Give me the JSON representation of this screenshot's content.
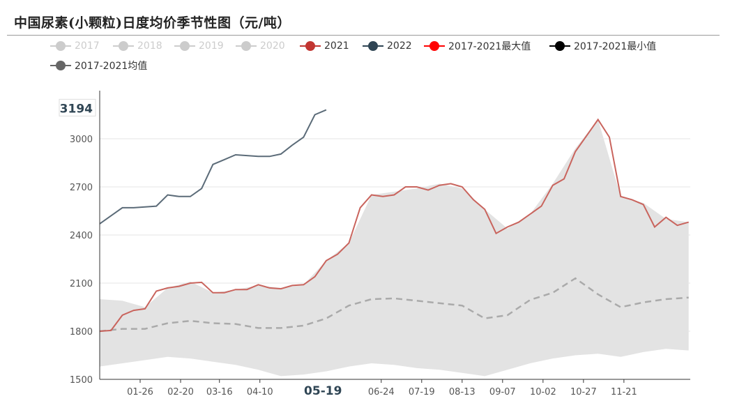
{
  "title": "中国尿素(小颗粒)日度均价季节性图（元/吨）",
  "legend": [
    {
      "label": "2017",
      "color": "#cccccc",
      "active": false
    },
    {
      "label": "2018",
      "color": "#cccccc",
      "active": false
    },
    {
      "label": "2019",
      "color": "#cccccc",
      "active": false
    },
    {
      "label": "2020",
      "color": "#cccccc",
      "active": false
    },
    {
      "label": "2021",
      "color": "#c23531",
      "active": true
    },
    {
      "label": "2022",
      "color": "#2f4554",
      "active": true
    },
    {
      "label": "2017-2021最大值",
      "color": "#ff0000",
      "active": true
    },
    {
      "label": "2017-2021最小值",
      "color": "#000000",
      "active": true
    },
    {
      "label": "2017-2021均值",
      "color": "#666666",
      "active": true
    }
  ],
  "chart_data": {
    "type": "line",
    "ylim": [
      1500,
      3300
    ],
    "yticks": [
      1500,
      1800,
      2100,
      2400,
      2700,
      3000
    ],
    "y_pointer_label": "3194",
    "x_ticks": [
      "01-26",
      "02-20",
      "03-16",
      "04-10",
      "05-19",
      "06-24",
      "07-19",
      "08-13",
      "09-07",
      "10-02",
      "10-27",
      "11-21"
    ],
    "x_pointer_label": "05-19",
    "grid": true,
    "series": [
      {
        "name": "2021",
        "color": "#c23531",
        "x": [
          "01-01",
          "01-08",
          "01-15",
          "01-22",
          "01-29",
          "02-05",
          "02-12",
          "02-19",
          "02-26",
          "03-05",
          "03-12",
          "03-19",
          "03-26",
          "04-02",
          "04-09",
          "04-16",
          "04-23",
          "04-30",
          "05-07",
          "05-14",
          "05-21",
          "05-28",
          "06-04",
          "06-11",
          "06-18",
          "06-25",
          "07-02",
          "07-09",
          "07-16",
          "07-23",
          "07-30",
          "08-06",
          "08-13",
          "08-20",
          "08-27",
          "09-03",
          "09-10",
          "09-17",
          "09-24",
          "10-01",
          "10-08",
          "10-15",
          "10-22",
          "10-29",
          "11-05",
          "11-12",
          "11-19",
          "11-26",
          "12-03",
          "12-10",
          "12-17",
          "12-24",
          "12-31"
        ],
        "values": [
          1800,
          1805,
          1900,
          1930,
          1940,
          2050,
          2070,
          2080,
          2100,
          2105,
          2040,
          2040,
          2060,
          2060,
          2090,
          2070,
          2065,
          2085,
          2090,
          2140,
          2240,
          2280,
          2350,
          2570,
          2650,
          2640,
          2650,
          2700,
          2700,
          2680,
          2710,
          2720,
          2700,
          2620,
          2560,
          2410,
          2450,
          2480,
          2530,
          2580,
          2710,
          2750,
          2920,
          3020,
          3120,
          3010,
          2640,
          2620,
          2590,
          2450,
          2510,
          2460,
          2480
        ]
      },
      {
        "name": "2022",
        "color": "#2f4554",
        "x": [
          "01-01",
          "01-08",
          "01-15",
          "01-22",
          "01-29",
          "02-05",
          "02-12",
          "02-19",
          "02-26",
          "03-05",
          "03-12",
          "03-19",
          "03-26",
          "04-02",
          "04-09",
          "04-16",
          "04-23",
          "04-30",
          "05-07",
          "05-14",
          "05-21"
        ],
        "values": [
          2470,
          2520,
          2570,
          2570,
          2575,
          2580,
          2650,
          2640,
          2640,
          2690,
          2840,
          2870,
          2900,
          2895,
          2890,
          2890,
          2905,
          2960,
          3010,
          3150,
          3180
        ]
      },
      {
        "name": "2017-2021最大值",
        "color": "#ff0000",
        "x": [
          "01-01",
          "01-15",
          "01-29",
          "02-12",
          "02-26",
          "03-12",
          "03-26",
          "04-09",
          "04-23",
          "05-07",
          "05-21",
          "06-04",
          "06-18",
          "07-02",
          "07-16",
          "07-30",
          "08-13",
          "08-27",
          "09-10",
          "09-24",
          "10-08",
          "10-22",
          "11-05",
          "11-19",
          "12-03",
          "12-17",
          "12-31"
        ],
        "values": [
          2000,
          1990,
          1950,
          2070,
          2110,
          2040,
          2060,
          2085,
          2070,
          2090,
          2240,
          2350,
          2650,
          2670,
          2690,
          2720,
          2690,
          2560,
          2440,
          2530,
          2720,
          2940,
          3120,
          2640,
          2600,
          2500,
          2480
        ]
      },
      {
        "name": "2017-2021最小值",
        "color": "#000000",
        "x": [
          "01-01",
          "01-15",
          "01-29",
          "02-12",
          "02-26",
          "03-12",
          "03-26",
          "04-09",
          "04-23",
          "05-07",
          "05-21",
          "06-04",
          "06-18",
          "07-02",
          "07-16",
          "07-30",
          "08-13",
          "08-27",
          "09-10",
          "09-24",
          "10-08",
          "10-22",
          "11-05",
          "11-19",
          "12-03",
          "12-17",
          "12-31"
        ],
        "values": [
          1580,
          1600,
          1620,
          1640,
          1630,
          1610,
          1590,
          1560,
          1520,
          1530,
          1550,
          1580,
          1600,
          1590,
          1570,
          1560,
          1540,
          1520,
          1560,
          1600,
          1630,
          1650,
          1660,
          1640,
          1670,
          1690,
          1680
        ]
      },
      {
        "name": "2017-2021均值",
        "color": "#aaaaaa",
        "x": [
          "01-01",
          "01-15",
          "01-29",
          "02-12",
          "02-26",
          "03-12",
          "03-26",
          "04-09",
          "04-23",
          "05-07",
          "05-21",
          "06-04",
          "06-18",
          "07-02",
          "07-16",
          "07-30",
          "08-13",
          "08-27",
          "09-10",
          "09-24",
          "10-08",
          "10-22",
          "11-05",
          "11-19",
          "12-03",
          "12-17",
          "12-31"
        ],
        "values": [
          1800,
          1815,
          1815,
          1850,
          1865,
          1850,
          1845,
          1820,
          1820,
          1835,
          1880,
          1960,
          2000,
          2005,
          1990,
          1975,
          1960,
          1880,
          1900,
          1995,
          2040,
          2130,
          2030,
          1950,
          1980,
          2000,
          2010
        ]
      }
    ]
  }
}
